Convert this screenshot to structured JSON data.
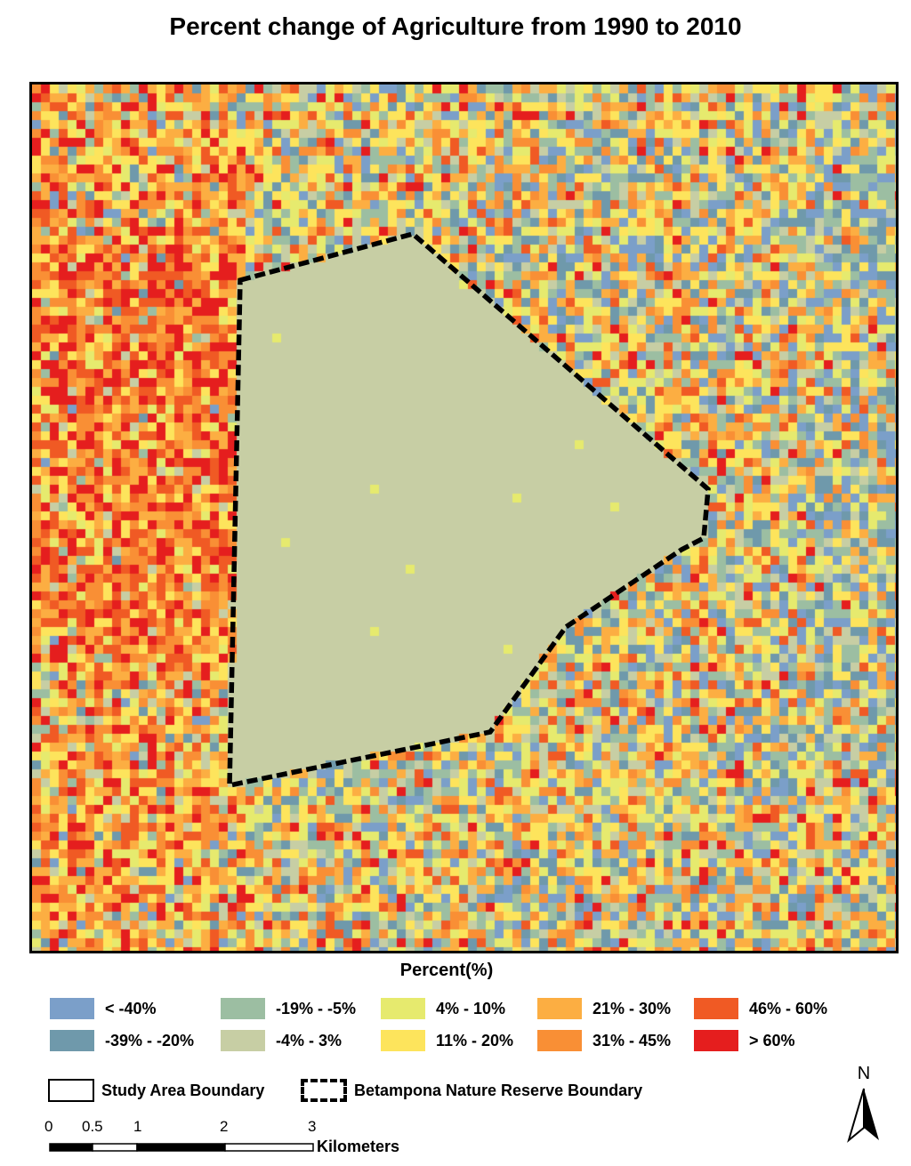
{
  "title": "Percent change of Agriculture from 1990 to 2010",
  "legend": {
    "title": "Percent(%)",
    "classes": [
      {
        "label": "< -40%",
        "color": "#7b9fc9"
      },
      {
        "label": "-39% - -20%",
        "color": "#6f99ab"
      },
      {
        "label": "-19% - -5%",
        "color": "#9cbea2"
      },
      {
        "label": "-4% - 3%",
        "color": "#c7cea4"
      },
      {
        "label": "4% - 10%",
        "color": "#e6ea6e"
      },
      {
        "label": "11% - 20%",
        "color": "#fde45c"
      },
      {
        "label": "21% - 30%",
        "color": "#fcae42"
      },
      {
        "label": "31% - 45%",
        "color": "#f98f35"
      },
      {
        "label": "46% - 60%",
        "color": "#f05a24"
      },
      {
        "label": "> 60%",
        "color": "#e51e1e"
      }
    ]
  },
  "boundaries": {
    "study_area": "Study Area Boundary",
    "reserve": "Betampona Nature Reserve Boundary"
  },
  "scale_bar": {
    "ticks": [
      "0",
      "0.5",
      "1",
      "2",
      "3"
    ],
    "unit": "Kilometers"
  },
  "north_arrow": {
    "letter": "N",
    "icon": "north-arrow-icon"
  }
}
